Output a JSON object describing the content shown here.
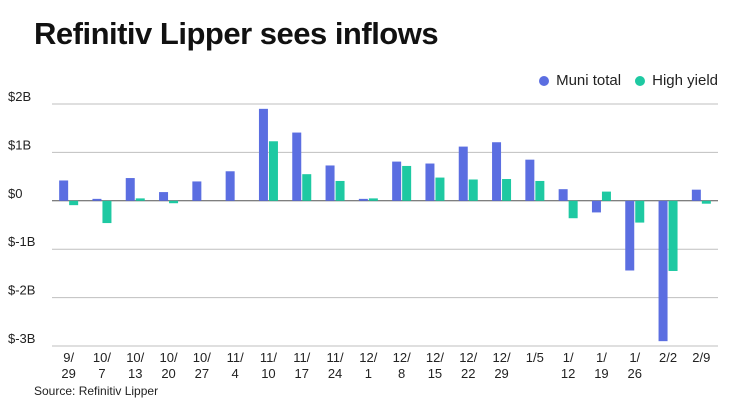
{
  "colors": {
    "muni": "#5b6ee1",
    "hy": "#1ec9a2",
    "grid": "#bfbfbf",
    "zero": "#555555"
  },
  "chart_data": {
    "type": "bar",
    "title": "Refinitiv Lipper sees inflows",
    "source": "Source: Refinitiv Lipper",
    "xlabel": "",
    "ylabel": "",
    "ylim": [
      -3,
      2
    ],
    "yticks": [
      2,
      1,
      0,
      -1,
      -2,
      -3
    ],
    "ytick_labels": [
      "$2B",
      "$1B",
      "$0",
      "$-1B",
      "$-2B",
      "$-3B"
    ],
    "grid": true,
    "legend_position": "top-right",
    "categories": [
      [
        "9/",
        "29"
      ],
      [
        "10/",
        "7"
      ],
      [
        "10/",
        "13"
      ],
      [
        "10/",
        "20"
      ],
      [
        "10/",
        "27"
      ],
      [
        "11/",
        "4"
      ],
      [
        "11/",
        "10"
      ],
      [
        "11/",
        "17"
      ],
      [
        "11/",
        "24"
      ],
      [
        "12/",
        "1"
      ],
      [
        "12/",
        "8"
      ],
      [
        "12/",
        "15"
      ],
      [
        "12/",
        "22"
      ],
      [
        "12/",
        "29"
      ],
      [
        "1/5",
        ""
      ],
      [
        "1/",
        "12"
      ],
      [
        "1/",
        "19"
      ],
      [
        "1/",
        "26"
      ],
      [
        "2/2",
        ""
      ],
      [
        "2/9",
        ""
      ]
    ],
    "series": [
      {
        "name": "Muni total",
        "color_key": "muni",
        "values": [
          0.42,
          0.04,
          0.47,
          0.18,
          0.4,
          0.61,
          1.9,
          1.41,
          0.73,
          0.04,
          0.81,
          0.77,
          1.12,
          1.21,
          0.85,
          0.24,
          -0.24,
          -1.44,
          -2.9,
          0.23
        ]
      },
      {
        "name": "High yield",
        "color_key": "hy",
        "values": [
          -0.09,
          -0.46,
          0.05,
          -0.05,
          0.0,
          0.0,
          1.23,
          0.55,
          0.41,
          0.05,
          0.72,
          0.48,
          0.44,
          0.45,
          0.41,
          -0.36,
          0.19,
          -0.45,
          -1.45,
          -0.06
        ]
      }
    ]
  }
}
